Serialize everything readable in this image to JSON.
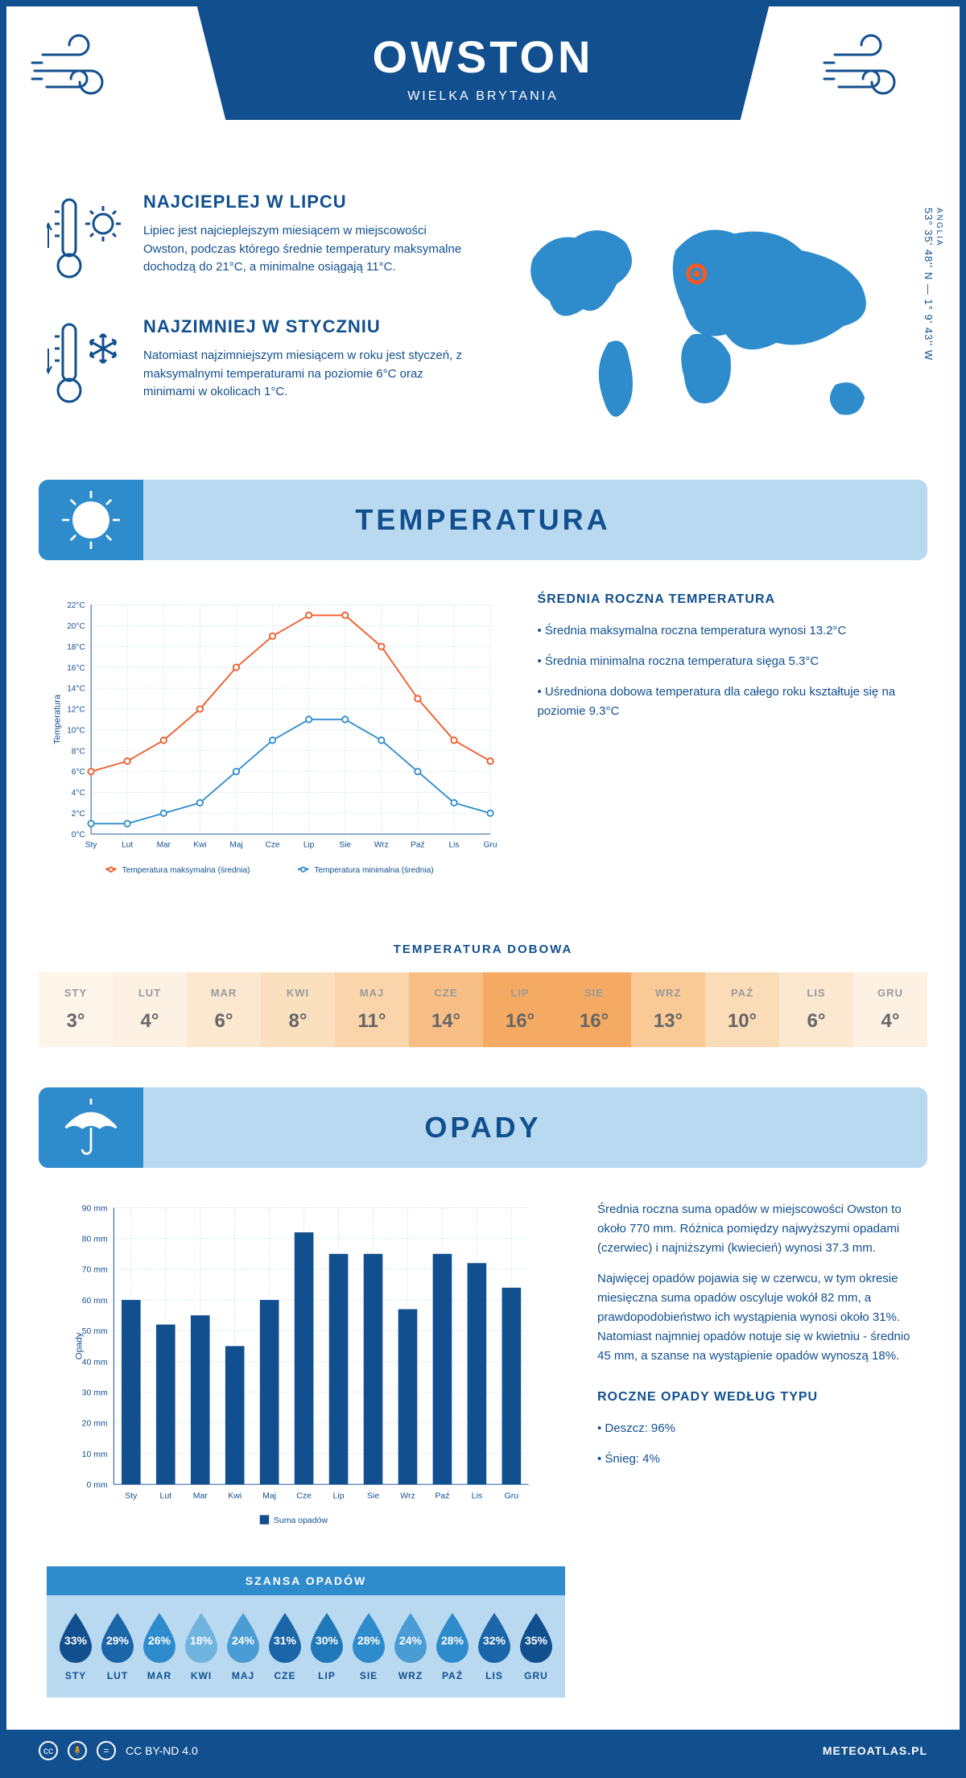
{
  "header": {
    "city": "OWSTON",
    "country": "WIELKA BRYTANIA"
  },
  "coords": {
    "region": "ANGLIA",
    "value": "53° 35' 48'' N — 1° 9' 43'' W"
  },
  "facts": {
    "hot": {
      "title": "NAJCIEPLEJ W LIPCU",
      "text": "Lipiec jest najcieplejszym miesiącem w miejscowości Owston, podczas którego średnie temperatury maksymalne dochodzą do 21°C, a minimalne osiągają 11°C."
    },
    "cold": {
      "title": "NAJZIMNIEJ W STYCZNIU",
      "text": "Natomiast najzimniejszym miesiącem w roku jest styczeń, z maksymalnymi temperaturami na poziomie 6°C oraz minimami w okolicach 1°C."
    }
  },
  "temp_section": {
    "title": "TEMPERATURA",
    "avg_title": "ŚREDNIA ROCZNA TEMPERATURA",
    "bullet1": "• Średnia maksymalna roczna temperatura wynosi 13.2°C",
    "bullet2": "• Średnia minimalna roczna temperatura sięga 5.3°C",
    "bullet3": "• Uśredniona dobowa temperatura dla całego roku kształtuje się na poziomie 9.3°C"
  },
  "temp_chart": {
    "type": "line",
    "months": [
      "Sty",
      "Lut",
      "Mar",
      "Kwi",
      "Maj",
      "Cze",
      "Lip",
      "Sie",
      "Wrz",
      "Paź",
      "Lis",
      "Gru"
    ],
    "max_series": [
      6,
      7,
      9,
      12,
      16,
      19,
      21,
      21,
      18,
      13,
      9,
      7
    ],
    "min_series": [
      1,
      1,
      2,
      3,
      6,
      9,
      11,
      11,
      9,
      6,
      3,
      2
    ],
    "max_color": "#f05a28",
    "min_color": "#2f8ccc",
    "y_min": 0,
    "y_max": 22,
    "y_step": 2,
    "y_label": "Temperatura",
    "legend_max": "Temperatura maksymalna (średnia)",
    "legend_min": "Temperatura minimalna (średnia)",
    "grid_color": "#cfe3f3",
    "marker_size": 4
  },
  "dobowa": {
    "title": "TEMPERATURA DOBOWA",
    "months": [
      "STY",
      "LUT",
      "MAR",
      "KWI",
      "MAJ",
      "CZE",
      "LIP",
      "SIE",
      "WRZ",
      "PAŹ",
      "LIS",
      "GRU"
    ],
    "values": [
      "3°",
      "4°",
      "6°",
      "8°",
      "11°",
      "14°",
      "16°",
      "16°",
      "13°",
      "10°",
      "6°",
      "4°"
    ],
    "bg_colors": [
      "#fdf4ea",
      "#fdf1e3",
      "#fce8d1",
      "#fbe0c0",
      "#fad5ab",
      "#f7bf85",
      "#f4aa62",
      "#f4aa62",
      "#f9ca96",
      "#fbdcb8",
      "#fce8d1",
      "#fdf1e3"
    ]
  },
  "precip_section": {
    "title": "OPADY",
    "para1": "Średnia roczna suma opadów w miejscowości Owston to około 770 mm. Różnica pomiędzy najwyższymi opadami (czerwiec) i najniższymi (kwiecień) wynosi 37.3 mm.",
    "para2": "Najwięcej opadów pojawia się w czerwcu, w tym okresie miesięczna suma opadów oscyluje wokół 82 mm, a prawdopodobieństwo ich wystąpienia wynosi około 31%. Natomiast najmniej opadów notuje się w kwietniu - średnio 45 mm, a szanse na wystąpienie opadów wynoszą 18%.",
    "type_title": "ROCZNE OPADY WEDŁUG TYPU",
    "type1": "• Deszcz: 96%",
    "type2": "• Śnieg: 4%"
  },
  "precip_chart": {
    "type": "bar",
    "months": [
      "Sty",
      "Lut",
      "Mar",
      "Kwi",
      "Maj",
      "Cze",
      "Lip",
      "Sie",
      "Wrz",
      "Paź",
      "Lis",
      "Gru"
    ],
    "values": [
      60,
      52,
      55,
      45,
      60,
      82,
      75,
      75,
      57,
      75,
      72,
      64
    ],
    "bar_color": "#114f8f",
    "y_min": 0,
    "y_max": 90,
    "y_step": 10,
    "y_label": "Opady",
    "legend": "Suma opadów",
    "grid_color": "#cfe3f3",
    "bar_width": 0.55
  },
  "szansa": {
    "title": "SZANSA OPADÓW",
    "months": [
      "STY",
      "LUT",
      "MAR",
      "KWI",
      "MAJ",
      "CZE",
      "LIP",
      "SIE",
      "WRZ",
      "PAŹ",
      "LIS",
      "GRU"
    ],
    "pct": [
      "33%",
      "29%",
      "26%",
      "18%",
      "24%",
      "31%",
      "30%",
      "28%",
      "24%",
      "28%",
      "32%",
      "35%"
    ],
    "drop_colors": [
      "#114f8f",
      "#1b66a8",
      "#2f8ccc",
      "#6fb4de",
      "#4a9dd4",
      "#1b66a8",
      "#2078b8",
      "#2f8ccc",
      "#4a9dd4",
      "#2f8ccc",
      "#1b66a8",
      "#114f8f"
    ]
  },
  "footer": {
    "license": "CC BY-ND 4.0",
    "site": "METEOATLAS.PL"
  }
}
